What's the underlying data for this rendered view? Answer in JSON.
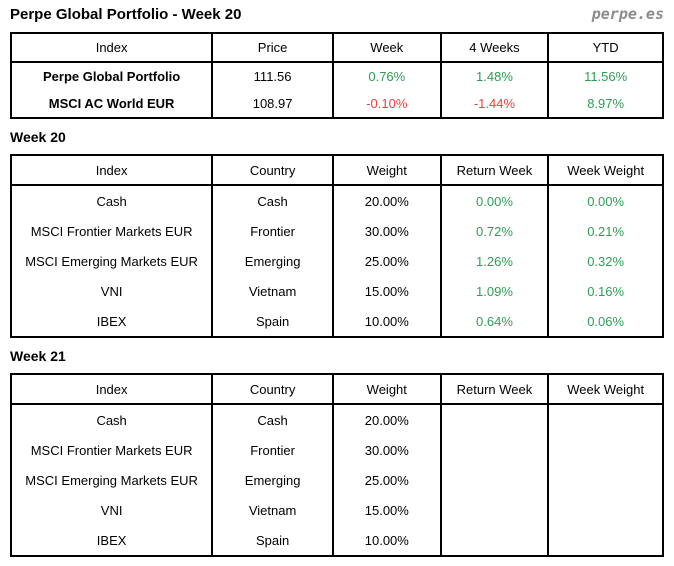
{
  "header": {
    "title": "Perpe Global Portfolio - Week 20",
    "logo": "perpe.es"
  },
  "colors": {
    "positive": "#2e9e55",
    "negative": "#ef3e3b",
    "logo_gray": "#8c8c8c",
    "border": "#000000"
  },
  "summary_table": {
    "columns": [
      "Index",
      "Price",
      "Week",
      "4 Weeks",
      "YTD"
    ],
    "colored_columns": [
      2,
      3,
      4
    ],
    "bold_first_column": true,
    "rows": [
      [
        "Perpe Global Portfolio",
        "111.56",
        "0.76%",
        "1.48%",
        "11.56%"
      ],
      [
        "MSCI AC World EUR",
        "108.97",
        "-0.10%",
        "-1.44%",
        "8.97%"
      ]
    ]
  },
  "week20": {
    "heading": "Week 20",
    "table": {
      "columns": [
        "Index",
        "Country",
        "Weight",
        "Return Week",
        "Week Weight"
      ],
      "colored_columns": [
        3,
        4
      ],
      "bold_first_column": false,
      "rows": [
        [
          "Cash",
          "Cash",
          "20.00%",
          "0.00%",
          "0.00%"
        ],
        [
          "MSCI Frontier Markets EUR",
          "Frontier",
          "30.00%",
          "0.72%",
          "0.21%"
        ],
        [
          "MSCI Emerging Markets EUR",
          "Emerging",
          "25.00%",
          "1.26%",
          "0.32%"
        ],
        [
          "VNI",
          "Vietnam",
          "15.00%",
          "1.09%",
          "0.16%"
        ],
        [
          "IBEX",
          "Spain",
          "10.00%",
          "0.64%",
          "0.06%"
        ]
      ]
    }
  },
  "week21": {
    "heading": "Week 21",
    "table": {
      "columns": [
        "Index",
        "Country",
        "Weight",
        "Return Week",
        "Week Weight"
      ],
      "colored_columns": [
        3,
        4
      ],
      "bold_first_column": false,
      "rows": [
        [
          "Cash",
          "Cash",
          "20.00%",
          "",
          ""
        ],
        [
          "MSCI Frontier Markets EUR",
          "Frontier",
          "30.00%",
          "",
          ""
        ],
        [
          "MSCI Emerging Markets EUR",
          "Emerging",
          "25.00%",
          "",
          ""
        ],
        [
          "VNI",
          "Vietnam",
          "15.00%",
          "",
          ""
        ],
        [
          "IBEX",
          "Spain",
          "10.00%",
          "",
          ""
        ]
      ]
    }
  }
}
